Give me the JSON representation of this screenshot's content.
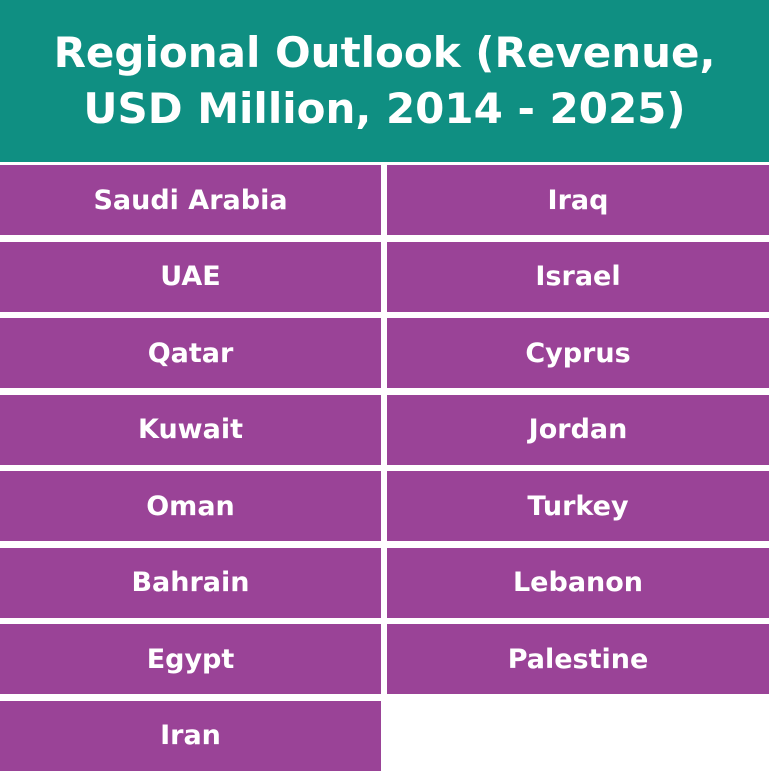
{
  "header": {
    "title": "Regional Outlook (Revenue, USD Million, 2014 - 2025)"
  },
  "table": {
    "columns": [
      [
        "Saudi Arabia",
        "UAE",
        "Qatar",
        "Kuwait",
        "Oman",
        "Bahrain",
        "Egypt",
        "Iran"
      ],
      [
        "Iraq",
        "Israel",
        "Cyprus",
        "Jordan",
        "Turkey",
        "Lebanon",
        "Palestine"
      ]
    ]
  }
}
